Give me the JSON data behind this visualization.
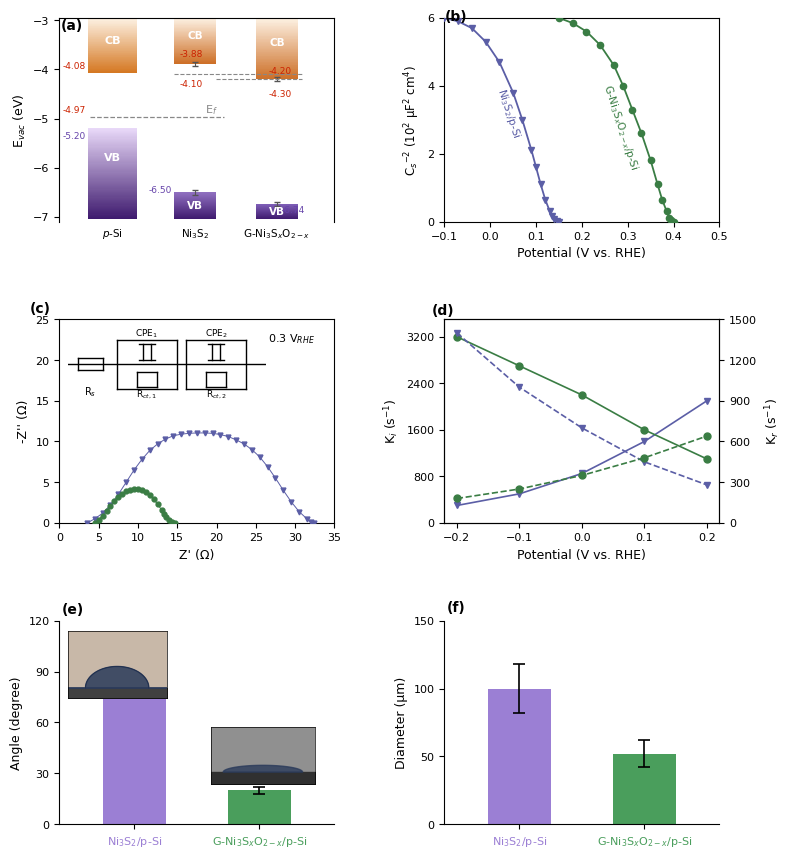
{
  "panel_a": {
    "cb_values": [
      -4.08,
      -3.88,
      -4.2
    ],
    "cb2_values": [
      null,
      -4.1,
      -4.3
    ],
    "vb_values": [
      -5.2,
      -6.5,
      -6.74
    ],
    "ef_value": -4.97,
    "ylim": [
      -7.1,
      -2.95
    ],
    "yticks": [
      -7,
      -6,
      -5,
      -4,
      -3
    ],
    "bar_color_vb_light": "#c8aadc",
    "bar_color_vb_dark": "#3e1a6e",
    "bar_color_cb_light": "#fce8c8",
    "bar_color_cb_dark": "#c86010",
    "red_col": "#cc2200",
    "purple_col": "#6644aa"
  },
  "panel_b": {
    "purple_x": [
      -0.1,
      -0.07,
      -0.04,
      -0.01,
      0.02,
      0.05,
      0.07,
      0.09,
      0.1,
      0.11,
      0.12,
      0.13,
      0.135,
      0.14,
      0.145,
      0.15
    ],
    "purple_y": [
      6.0,
      5.9,
      5.7,
      5.3,
      4.7,
      3.8,
      3.0,
      2.1,
      1.6,
      1.1,
      0.65,
      0.3,
      0.15,
      0.07,
      0.02,
      0.0
    ],
    "green_x": [
      0.15,
      0.18,
      0.21,
      0.24,
      0.27,
      0.29,
      0.31,
      0.33,
      0.35,
      0.365,
      0.375,
      0.385,
      0.39,
      0.395,
      0.4
    ],
    "green_y": [
      6.0,
      5.85,
      5.6,
      5.2,
      4.6,
      4.0,
      3.3,
      2.6,
      1.8,
      1.1,
      0.65,
      0.3,
      0.12,
      0.04,
      0.0
    ],
    "xlim": [
      -0.1,
      0.5
    ],
    "ylim": [
      0,
      6
    ],
    "xticks": [
      -0.1,
      0.0,
      0.1,
      0.2,
      0.3,
      0.4,
      0.5
    ],
    "yticks": [
      0,
      2,
      4,
      6
    ],
    "xlabel": "Potential (V vs. RHE)",
    "purple_color": "#5b5ea6",
    "green_color": "#3a7d44"
  },
  "panel_c": {
    "purple_x": [
      3.5,
      4.5,
      5.5,
      6.5,
      7.5,
      8.5,
      9.5,
      10.5,
      11.5,
      12.5,
      13.5,
      14.5,
      15.5,
      16.5,
      17.5,
      18.5,
      19.5,
      20.5,
      21.5,
      22.5,
      23.5,
      24.5,
      25.5,
      26.5,
      27.5,
      28.5,
      29.5,
      30.5,
      31.5,
      32.0,
      32.4
    ],
    "purple_y": [
      0.0,
      0.5,
      1.2,
      2.2,
      3.5,
      5.0,
      6.5,
      7.8,
      8.9,
      9.7,
      10.3,
      10.7,
      10.9,
      11.0,
      11.05,
      11.05,
      11.0,
      10.85,
      10.6,
      10.2,
      9.7,
      9.0,
      8.1,
      6.9,
      5.5,
      4.0,
      2.6,
      1.4,
      0.5,
      0.15,
      0.0
    ],
    "green_x": [
      4.5,
      5.0,
      5.5,
      6.0,
      6.5,
      7.0,
      7.5,
      8.0,
      8.5,
      9.0,
      9.5,
      10.0,
      10.5,
      11.0,
      11.5,
      12.0,
      12.5,
      13.0,
      13.3,
      13.6,
      14.0,
      14.3,
      14.7
    ],
    "green_y": [
      0.0,
      0.4,
      0.9,
      1.5,
      2.1,
      2.7,
      3.2,
      3.6,
      3.9,
      4.1,
      4.2,
      4.2,
      4.1,
      3.8,
      3.4,
      2.9,
      2.3,
      1.6,
      1.1,
      0.7,
      0.3,
      0.1,
      0.0
    ],
    "xlim": [
      0,
      35
    ],
    "ylim": [
      0,
      25
    ],
    "xticks": [
      0,
      5,
      10,
      15,
      20,
      25,
      30,
      35
    ],
    "yticks": [
      0,
      5,
      10,
      15,
      20,
      25
    ],
    "xlabel": "Z' (Ω)",
    "ylabel": "-Z'' (Ω)",
    "purple_color": "#5b5ea6",
    "green_color": "#3a7d44"
  },
  "panel_d": {
    "purple_solid_x": [
      -0.2,
      -0.1,
      0.0,
      0.1,
      0.2
    ],
    "purple_solid_y": [
      300,
      500,
      850,
      1400,
      2100
    ],
    "green_solid_x": [
      -0.2,
      -0.1,
      0.0,
      0.1,
      0.2
    ],
    "green_solid_y": [
      3200,
      2700,
      2200,
      1600,
      1100
    ],
    "purple_dashed_x": [
      -0.2,
      -0.1,
      0.0,
      0.1,
      0.2
    ],
    "purple_dashed_y": [
      1400,
      1000,
      700,
      450,
      280
    ],
    "green_dashed_x": [
      -0.2,
      -0.1,
      0.0,
      0.1,
      0.2
    ],
    "green_dashed_y": [
      180,
      250,
      350,
      480,
      640
    ],
    "xlim": [
      -0.22,
      0.22
    ],
    "ylim_left": [
      0,
      3500
    ],
    "ylim_right": [
      0,
      1500
    ],
    "yticks_left": [
      0,
      800,
      1600,
      2400,
      3200
    ],
    "yticks_right": [
      0,
      300,
      600,
      900,
      1200,
      1500
    ],
    "xticks": [
      -0.2,
      -0.1,
      0.0,
      0.1,
      0.2
    ],
    "xlabel": "Potential (V vs. RHE)",
    "purple_color": "#5b5ea6",
    "green_color": "#3a7d44"
  },
  "panel_e": {
    "values": [
      90,
      20
    ],
    "errors": [
      3,
      2
    ],
    "colors": [
      "#9b7fd4",
      "#4a9e5c"
    ],
    "ylabel": "Angle (degree)",
    "ylim": [
      0,
      120
    ],
    "yticks": [
      0,
      30,
      60,
      90,
      120
    ],
    "purple_label": "Ni$_3$S$_2$/p-Si",
    "green_label": "G-Ni$_3$S$_x$O$_{2-x}$/p-Si"
  },
  "panel_f": {
    "values": [
      100,
      52
    ],
    "errors": [
      18,
      10
    ],
    "colors": [
      "#9b7fd4",
      "#4a9e5c"
    ],
    "ylabel": "Diameter (μm)",
    "ylim": [
      0,
      150
    ],
    "yticks": [
      0,
      50,
      100,
      150
    ],
    "purple_label": "Ni$_3$S$_2$/p-Si",
    "green_label": "G-Ni$_3$S$_x$O$_{2-x}$/p-Si"
  },
  "purple_color": "#5b5ea6",
  "green_color": "#3a7d44",
  "purple_light": "#9b7fd4",
  "green_light": "#4a9e5c"
}
